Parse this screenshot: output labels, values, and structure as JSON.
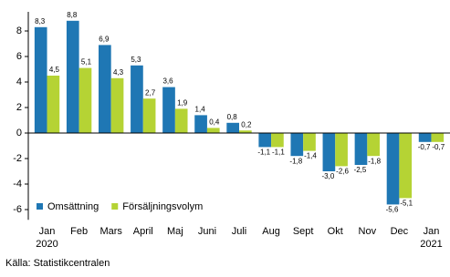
{
  "chart_data": {
    "type": "bar",
    "categories": [
      "Jan 2020",
      "Feb",
      "Mars",
      "April",
      "Maj",
      "Juni",
      "Juli",
      "Aug",
      "Sept",
      "Okt",
      "Nov",
      "Dec",
      "Jan 2021"
    ],
    "series": [
      {
        "name": "Omsättning",
        "color": "#1f77b4",
        "values": [
          8.3,
          8.8,
          6.9,
          5.3,
          3.6,
          1.4,
          0.8,
          -1.1,
          -1.8,
          -3.0,
          -2.5,
          -5.6,
          -0.7
        ],
        "value_labels": [
          "8,3",
          "8,8",
          "6,9",
          "5,3",
          "3,6",
          "1,4",
          "0,8",
          "-1,1",
          "-1,8",
          "-3,0",
          "-2,5",
          "-5,6",
          "-0,7"
        ]
      },
      {
        "name": "Försäljningsvolym",
        "color": "#b5d334",
        "values": [
          4.5,
          5.1,
          4.3,
          2.7,
          1.9,
          0.4,
          0.2,
          -1.1,
          -1.4,
          -2.6,
          -1.8,
          -5.1,
          -0.7
        ],
        "value_labels": [
          "4,5",
          "5,1",
          "4,3",
          "2,7",
          "1,9",
          "0,4",
          "0,2",
          "-1,1",
          "-1,4",
          "-2,6",
          "-1,8",
          "-5,1",
          "-0,7"
        ]
      }
    ],
    "ylim": [
      -6.8,
      9.5
    ],
    "yticks": [
      -6,
      -4,
      -2,
      0,
      2,
      4,
      6,
      8
    ],
    "legend": "lower-left",
    "source": "Källa: Statistikcentralen"
  }
}
